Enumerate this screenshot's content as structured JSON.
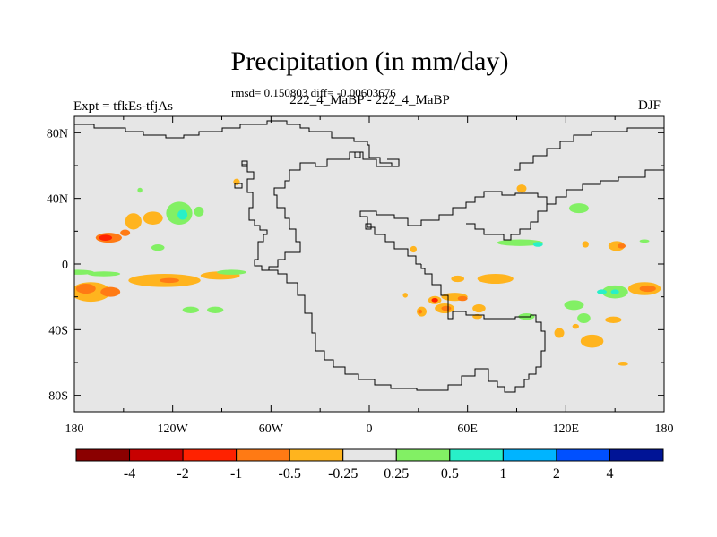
{
  "title": "Precipitation (in mm/day)",
  "stats": "rmsd= 0.150803 diff= -0.00603676",
  "subtitle": "222_4_MaBP - 222_4_MaBP",
  "left_label": "Expt = tfkEs-tfjAs",
  "right_label": "DJF",
  "colors": {
    "land_background": "#e6e6e6",
    "coastline": "#000000",
    "frame": "#000000"
  },
  "chart_data": {
    "type": "heatmap",
    "map": "Cylindrical equidistant, global",
    "xlim": [
      -180,
      180
    ],
    "ylim": [
      -90,
      90
    ],
    "x_ticks": [
      {
        "value": -180,
        "label": "180"
      },
      {
        "value": -120,
        "label": "120W"
      },
      {
        "value": -60,
        "label": "60W"
      },
      {
        "value": 0,
        "label": "0"
      },
      {
        "value": 60,
        "label": "60E"
      },
      {
        "value": 120,
        "label": "120E"
      },
      {
        "value": 180,
        "label": "180"
      }
    ],
    "y_ticks": [
      {
        "value": 80,
        "label": "80N"
      },
      {
        "value": 40,
        "label": "40N"
      },
      {
        "value": 0,
        "label": "0"
      },
      {
        "value": -40,
        "label": "40S"
      },
      {
        "value": -80,
        "label": "80S"
      }
    ],
    "colorbar": {
      "colors": [
        "#8b0000",
        "#c80000",
        "#ff2200",
        "#ff7a14",
        "#ffb41e",
        "#e6e6e6",
        "#82f064",
        "#28f0c8",
        "#00b4ff",
        "#0050ff",
        "#001496"
      ],
      "levels": [
        "-4",
        "-2",
        "-1",
        "-0.5",
        "-0.25",
        "0.25",
        "0.5",
        "1",
        "2",
        "4"
      ]
    },
    "patches": [
      {
        "lon": -159,
        "lat": 16,
        "rlon": 8,
        "rlat": 3,
        "level": "-0.5"
      },
      {
        "lon": -161,
        "lat": 16,
        "rlon": 4,
        "rlat": 1.8,
        "level": "-1"
      },
      {
        "lon": -149,
        "lat": 19,
        "rlon": 3,
        "rlat": 2,
        "level": "-0.5"
      },
      {
        "lon": -144,
        "lat": 26,
        "rlon": 5,
        "rlat": 5,
        "level": "-0.25"
      },
      {
        "lon": -132,
        "lat": 28,
        "rlon": 6,
        "rlat": 4,
        "level": "-0.25"
      },
      {
        "lon": -129,
        "lat": 10,
        "rlon": 4,
        "rlat": 2,
        "level": "0.25"
      },
      {
        "lon": -116,
        "lat": 31,
        "rlon": 8,
        "rlat": 7,
        "level": "0.25"
      },
      {
        "lon": -114,
        "lat": 30,
        "rlon": 3,
        "rlat": 3,
        "level": "0.5"
      },
      {
        "lon": -104,
        "lat": 32,
        "rlon": 3,
        "rlat": 3,
        "level": "0.25"
      },
      {
        "lon": -81,
        "lat": 50,
        "rlon": 2,
        "rlat": 2,
        "level": "-0.25"
      },
      {
        "lon": -140,
        "lat": 45,
        "rlon": 1.5,
        "rlat": 1.5,
        "level": "0.25"
      },
      {
        "lon": -178,
        "lat": -5,
        "rlon": 10,
        "rlat": 1.5,
        "level": "0.25"
      },
      {
        "lon": -162,
        "lat": -6,
        "rlon": 10,
        "rlat": 1.5,
        "level": "0.25"
      },
      {
        "lon": -170,
        "lat": -17,
        "rlon": 12,
        "rlat": 6,
        "level": "-0.25"
      },
      {
        "lon": -173,
        "lat": -15,
        "rlon": 6,
        "rlat": 3,
        "level": "-0.5"
      },
      {
        "lon": -158,
        "lat": -17,
        "rlon": 6,
        "rlat": 3,
        "level": "-0.5"
      },
      {
        "lon": -125,
        "lat": -10,
        "rlon": 22,
        "rlat": 4,
        "level": "-0.25"
      },
      {
        "lon": -122,
        "lat": -10,
        "rlon": 6,
        "rlat": 1.5,
        "level": "-0.5"
      },
      {
        "lon": -91,
        "lat": -7,
        "rlon": 12,
        "rlat": 2.5,
        "level": "-0.25"
      },
      {
        "lon": -84,
        "lat": -5,
        "rlon": 9,
        "rlat": 1.5,
        "level": "0.25"
      },
      {
        "lon": -109,
        "lat": -28,
        "rlon": 5,
        "rlat": 2,
        "level": "0.25"
      },
      {
        "lon": -94,
        "lat": -28,
        "rlon": 5,
        "rlat": 2,
        "level": "0.25"
      },
      {
        "lon": 93,
        "lat": 46,
        "rlon": 3,
        "rlat": 2.5,
        "level": "-0.25"
      },
      {
        "lon": 128,
        "lat": 34,
        "rlon": 6,
        "rlat": 3,
        "level": "0.25"
      },
      {
        "lon": 92,
        "lat": 13,
        "rlon": 14,
        "rlat": 2,
        "level": "0.25"
      },
      {
        "lon": 103,
        "lat": 12,
        "rlon": 3,
        "rlat": 1.5,
        "level": "0.5"
      },
      {
        "lon": 132,
        "lat": 12,
        "rlon": 2,
        "rlat": 2,
        "level": "-0.25"
      },
      {
        "lon": 151,
        "lat": 11,
        "rlon": 5,
        "rlat": 3,
        "level": "-0.25"
      },
      {
        "lon": 154,
        "lat": 11,
        "rlon": 2.5,
        "rlat": 1.5,
        "level": "-0.5"
      },
      {
        "lon": 168,
        "lat": 14,
        "rlon": 3,
        "rlat": 1,
        "level": "0.25"
      },
      {
        "lon": 27,
        "lat": 9,
        "rlon": 2,
        "rlat": 2,
        "level": "-0.25"
      },
      {
        "lon": 77,
        "lat": -9,
        "rlon": 11,
        "rlat": 3,
        "level": "-0.25"
      },
      {
        "lon": 54,
        "lat": -9,
        "rlon": 4,
        "rlat": 2,
        "level": "-0.25"
      },
      {
        "lon": 52,
        "lat": -20,
        "rlon": 8,
        "rlat": 2.5,
        "level": "-0.25"
      },
      {
        "lon": 57,
        "lat": -21,
        "rlon": 3,
        "rlat": 1.5,
        "level": "-0.5"
      },
      {
        "lon": 40,
        "lat": -22,
        "rlon": 4,
        "rlat": 2.5,
        "level": "-0.25"
      },
      {
        "lon": 40,
        "lat": -22,
        "rlon": 2,
        "rlat": 1.3,
        "level": "-1"
      },
      {
        "lon": 46,
        "lat": -27,
        "rlon": 6,
        "rlat": 3,
        "level": "-0.25"
      },
      {
        "lon": 47,
        "lat": -27,
        "rlon": 3,
        "rlat": 1.5,
        "level": "-0.5"
      },
      {
        "lon": 32,
        "lat": -29,
        "rlon": 3,
        "rlat": 3,
        "level": "-0.25"
      },
      {
        "lon": 31,
        "lat": -29,
        "rlon": 1.3,
        "rlat": 1.3,
        "level": "-0.5"
      },
      {
        "lon": 22,
        "lat": -19,
        "rlon": 1.5,
        "rlat": 1.5,
        "level": "-0.25"
      },
      {
        "lon": 67,
        "lat": -27,
        "rlon": 4,
        "rlat": 2.5,
        "level": "-0.25"
      },
      {
        "lon": 66,
        "lat": -32,
        "rlon": 3,
        "rlat": 1.5,
        "level": "-0.25"
      },
      {
        "lon": 96,
        "lat": -32,
        "rlon": 5,
        "rlat": 2,
        "level": "0.25"
      },
      {
        "lon": 125,
        "lat": -25,
        "rlon": 6,
        "rlat": 3,
        "level": "0.25"
      },
      {
        "lon": 131,
        "lat": -33,
        "rlon": 4,
        "rlat": 3,
        "level": "0.25"
      },
      {
        "lon": 150,
        "lat": -17,
        "rlon": 8,
        "rlat": 4,
        "level": "0.25"
      },
      {
        "lon": 150,
        "lat": -17,
        "rlon": 2.5,
        "rlat": 1.5,
        "level": "0.5"
      },
      {
        "lon": 142,
        "lat": -17,
        "rlon": 3,
        "rlat": 1.5,
        "level": "0.5"
      },
      {
        "lon": 168,
        "lat": -15,
        "rlon": 10,
        "rlat": 4,
        "level": "-0.25"
      },
      {
        "lon": 170,
        "lat": -15,
        "rlon": 5,
        "rlat": 2,
        "level": "-0.5"
      },
      {
        "lon": 136,
        "lat": -47,
        "rlon": 7,
        "rlat": 4,
        "level": "-0.25"
      },
      {
        "lon": 149,
        "lat": -34,
        "rlon": 5,
        "rlat": 2,
        "level": "-0.25"
      },
      {
        "lon": 116,
        "lat": -42,
        "rlon": 3,
        "rlat": 3,
        "level": "-0.25"
      },
      {
        "lon": 126,
        "lat": -38,
        "rlon": 2,
        "rlat": 1.5,
        "level": "-0.25"
      },
      {
        "lon": 155,
        "lat": -61,
        "rlon": 3,
        "rlat": 1,
        "level": "-0.25"
      }
    ]
  }
}
